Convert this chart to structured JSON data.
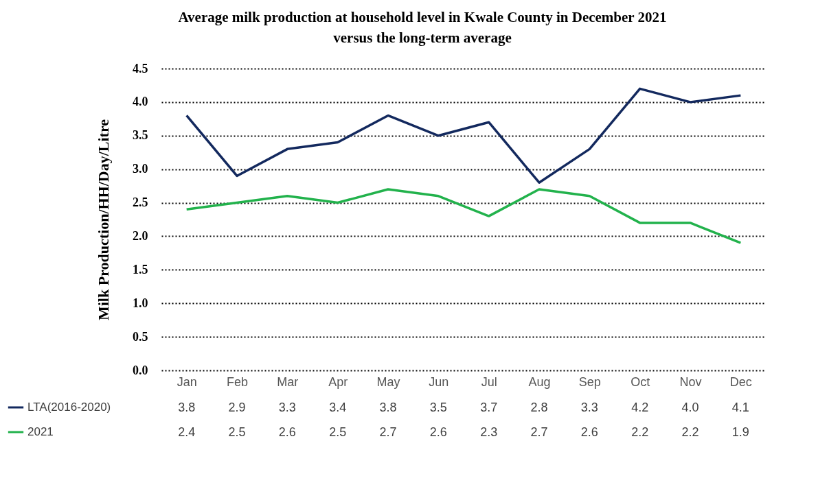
{
  "chart_data": {
    "type": "line",
    "title": "Average milk production  at household level in Kwale County in December 2021 versus the long-term average",
    "ylabel": "Milk Production/HH/Day/Litre",
    "categories": [
      "Jan",
      "Feb",
      "Mar",
      "Apr",
      "May",
      "Jun",
      "Jul",
      "Aug",
      "Sep",
      "Oct",
      "Nov",
      "Dec"
    ],
    "series": [
      {
        "name": "LTA(2016-2020)",
        "color": "#13295e",
        "values": [
          3.8,
          2.9,
          3.3,
          3.4,
          3.8,
          3.5,
          3.7,
          2.8,
          3.3,
          4.2,
          4.0,
          4.1
        ],
        "value_labels": [
          "3.8",
          "2.9",
          "3.3",
          "3.4",
          "3.8",
          "3.5",
          "3.7",
          "2.8",
          "3.3",
          "4.2",
          "4.0",
          "4.1"
        ]
      },
      {
        "name": "2021",
        "color": "#22b24c",
        "values": [
          2.4,
          2.5,
          2.6,
          2.5,
          2.7,
          2.6,
          2.3,
          2.7,
          2.6,
          2.2,
          2.2,
          1.9
        ],
        "value_labels": [
          "2.4",
          "2.5",
          "2.6",
          "2.5",
          "2.7",
          "2.6",
          "2.3",
          "2.7",
          "2.6",
          "2.2",
          "2.2",
          "1.9"
        ]
      }
    ],
    "ylim": [
      0,
      4.5
    ],
    "yticks": [
      {
        "value": 0,
        "label": "0.0"
      },
      0.5,
      {
        "value": 1,
        "label": "1.0"
      },
      1.5,
      {
        "value": 2,
        "label": "2.0"
      },
      2.5,
      {
        "value": 3,
        "label": "3.0"
      },
      3.5,
      {
        "value": 4,
        "label": "4.0"
      },
      4.5
    ],
    "grid": "y",
    "legend": "bottom left",
    "marker": "none",
    "line_style": "solid"
  }
}
